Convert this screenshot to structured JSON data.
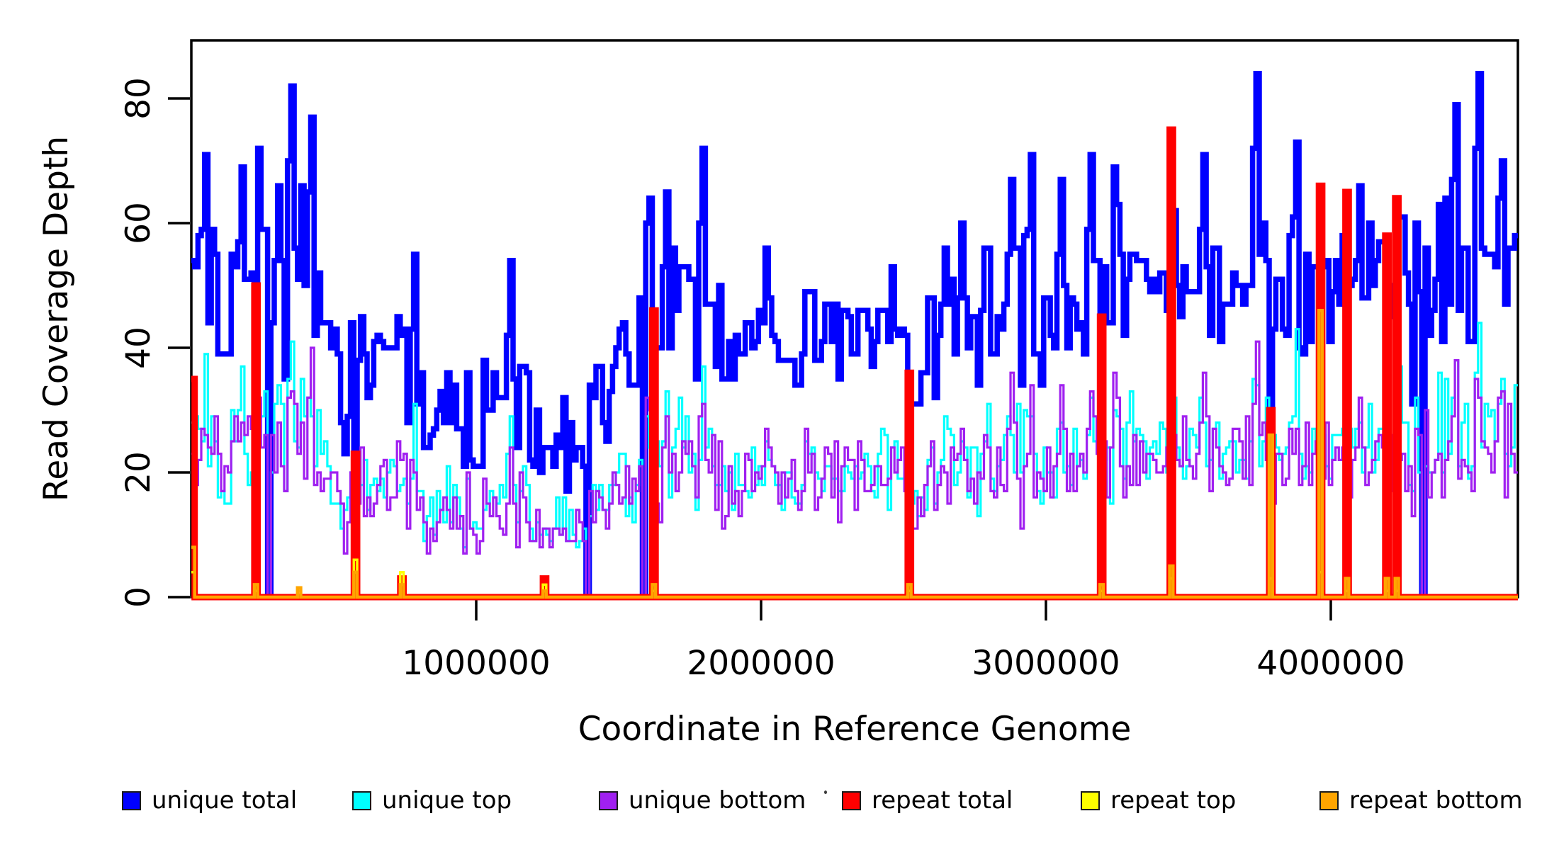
{
  "figure": {
    "background": "#FFFFFF"
  },
  "y_axis": {
    "label": "Read Coverage Depth",
    "ticks": [
      "0",
      "20",
      "40",
      "60",
      "80"
    ],
    "tick_values": [
      0,
      20,
      40,
      60,
      80
    ]
  },
  "x_axis": {
    "label": "Coordinate in Reference Genome",
    "ticks": [
      "1000000",
      "2000000",
      "3000000",
      "4000000"
    ],
    "tick_values": [
      1000000,
      2000000,
      3000000,
      4000000
    ]
  },
  "legend": {
    "items": [
      {
        "label": "unique total",
        "color": "#0000FF"
      },
      {
        "label": "unique top",
        "color": "#00FFFF"
      },
      {
        "label": "unique bottom",
        "color": "#A020F0"
      },
      {
        "label": "repeat total",
        "color": "#FF0000"
      },
      {
        "label": "repeat top",
        "color": "#FFFF00"
      },
      {
        "label": "repeat bottom",
        "color": "#FFA500"
      }
    ]
  },
  "chart_data": {
    "type": "step-line",
    "title": "",
    "xlabel": "Coordinate in Reference Genome",
    "ylabel": "Read Coverage Depth",
    "xlim": [
      0,
      4657000
    ],
    "ylim": [
      0,
      89
    ],
    "xticks": [
      1000000,
      2000000,
      3000000,
      4000000
    ],
    "yticks": [
      0,
      20,
      40,
      60,
      80
    ],
    "grid": false,
    "legend_position": "bottom",
    "n_windows": 400,
    "window_bp": 11642,
    "seed": 20,
    "series": [
      {
        "name": "unique total",
        "color": "#0000FF",
        "stroke_width": 7.5
      },
      {
        "name": "unique top",
        "color": "#00FFFF",
        "stroke_width": 3.2
      },
      {
        "name": "unique bottom",
        "color": "#A020F0",
        "stroke_width": 3.2
      },
      {
        "name": "repeat total",
        "color": "#FF0000",
        "stroke_width": 9
      },
      {
        "name": "repeat top",
        "color": "#FFFF00",
        "stroke_width": 3.5
      },
      {
        "name": "repeat bottom",
        "color": "#FFA500",
        "stroke_width": 4.5
      }
    ],
    "unique_profile": [
      [
        0,
        80,
        54,
        14
      ],
      [
        80,
        500,
        50,
        16
      ],
      [
        500,
        760,
        37,
        10
      ],
      [
        760,
        1180,
        30,
        8
      ],
      [
        1180,
        1380,
        24,
        7
      ],
      [
        1380,
        1560,
        36,
        11
      ],
      [
        1560,
        1780,
        47,
        12
      ],
      [
        1780,
        1980,
        45,
        12
      ],
      [
        1980,
        2350,
        41,
        10
      ],
      [
        2350,
        2620,
        40,
        10
      ],
      [
        2620,
        3100,
        46,
        11
      ],
      [
        3100,
        3420,
        50,
        12
      ],
      [
        3420,
        3720,
        52,
        12
      ],
      [
        3720,
        3960,
        54,
        13
      ],
      [
        3960,
        4300,
        50,
        12
      ],
      [
        4300,
        4657,
        53,
        13
      ]
    ],
    "peaks": [
      [
        50,
        71
      ],
      [
        180,
        69
      ],
      [
        300,
        66
      ],
      [
        350,
        82
      ],
      [
        420,
        77
      ],
      [
        780,
        55
      ],
      [
        1120,
        54
      ],
      [
        1610,
        64
      ],
      [
        1660,
        65
      ],
      [
        1790,
        72
      ],
      [
        2010,
        56
      ],
      [
        2460,
        53
      ],
      [
        2700,
        60
      ],
      [
        2870,
        67
      ],
      [
        2950,
        71
      ],
      [
        3050,
        67
      ],
      [
        3150,
        71
      ],
      [
        3550,
        71
      ],
      [
        3740,
        84
      ],
      [
        3880,
        73
      ],
      [
        4100,
        66
      ],
      [
        4380,
        63
      ],
      [
        4440,
        79
      ],
      [
        4520,
        84
      ],
      [
        4600,
        70
      ]
    ],
    "zero_drops": [
      222,
      266,
      565,
      1390,
      1580,
      1620,
      2520,
      3190,
      3780,
      3960,
      4050,
      4190,
      4225,
      4320
    ],
    "repeat_spikes": [
      {
        "kb": 5,
        "red": 35,
        "orange": 8,
        "yellow": 4
      },
      {
        "kb": 222,
        "red": 50,
        "orange": 2,
        "yellow": 1
      },
      {
        "kb": 370,
        "red": 0,
        "orange": 1.5,
        "yellow": 1
      },
      {
        "kb": 565,
        "red": 23,
        "orange": 4,
        "yellow": 6
      },
      {
        "kb": 730,
        "red": 3,
        "orange": 2,
        "yellow": 4
      },
      {
        "kb": 1230,
        "red": 3,
        "orange": 1,
        "yellow": 2
      },
      {
        "kb": 1620,
        "red": 46,
        "orange": 2,
        "yellow": 1
      },
      {
        "kb": 2520,
        "red": 36,
        "orange": 2,
        "yellow": 1
      },
      {
        "kb": 3190,
        "red": 45,
        "orange": 2,
        "yellow": 1
      },
      {
        "kb": 3440,
        "red": 75,
        "orange": 5,
        "yellow": 3
      },
      {
        "kb": 3780,
        "red": 30,
        "orange": 26,
        "yellow": 3
      },
      {
        "kb": 3960,
        "red": 66,
        "orange": 46,
        "yellow": 4
      },
      {
        "kb": 4050,
        "red": 65,
        "orange": 3,
        "yellow": 1
      },
      {
        "kb": 4190,
        "red": 58,
        "orange": 3,
        "yellow": 1
      },
      {
        "kb": 4225,
        "red": 64,
        "orange": 3,
        "yellow": 1
      }
    ]
  }
}
